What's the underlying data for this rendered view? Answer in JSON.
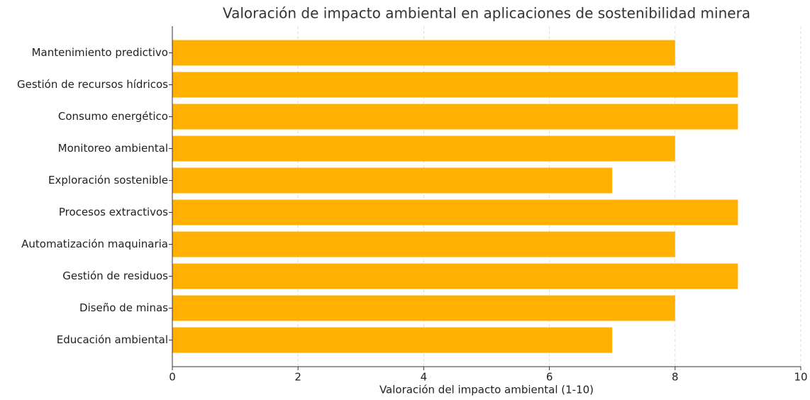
{
  "chart_data": {
    "type": "bar",
    "orientation": "horizontal",
    "title": "Valoración de impacto ambiental en aplicaciones de sostenibilidad minera",
    "x_label": "Valoración del impacto ambiental (1-10)",
    "categories": [
      "Mantenimiento predictivo",
      "Gestión de recursos hídricos",
      "Consumo energético",
      "Monitoreo ambiental",
      "Exploración sostenible",
      "Procesos extractivos",
      "Automatización maquinaria",
      "Gestión de residuos",
      "Diseño de minas",
      "Educación ambiental"
    ],
    "values": [
      8,
      9,
      9,
      8,
      7,
      9,
      8,
      9,
      8,
      7
    ],
    "color": "#ffb000",
    "xlim": [
      0,
      10
    ],
    "xticks": [
      0,
      2,
      4,
      6,
      8,
      10
    ],
    "grid": true
  }
}
